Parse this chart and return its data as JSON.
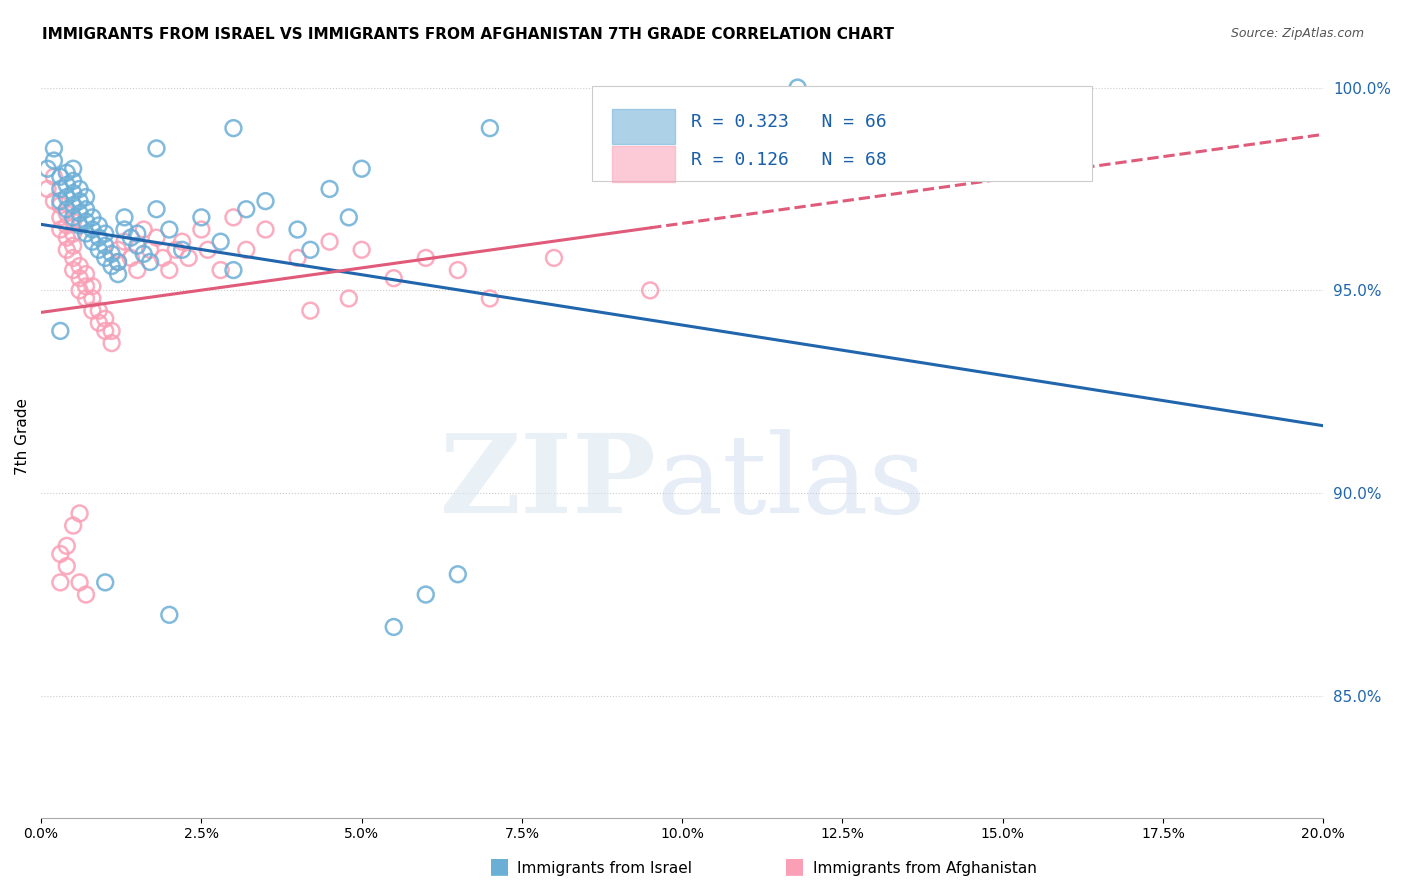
{
  "title": "IMMIGRANTS FROM ISRAEL VS IMMIGRANTS FROM AFGHANISTAN 7TH GRADE CORRELATION CHART",
  "source": "Source: ZipAtlas.com",
  "ylabel": "7th Grade",
  "xmin": 0.0,
  "xmax": 0.2,
  "ymin": 0.82,
  "ymax": 1.008,
  "legend_israel": "R = 0.323   N = 66",
  "legend_afghanistan": "R = 0.126   N = 68",
  "israel_color": "#6baed6",
  "afghanistan_color": "#fa9fb5",
  "israel_line_color": "#2166ac",
  "afghanistan_line_color": "#e05a7a",
  "background_color": "#ffffff",
  "grid_color": "#cccccc",
  "israel_x": [
    0.001,
    0.002,
    0.002,
    0.003,
    0.003,
    0.003,
    0.004,
    0.004,
    0.004,
    0.004,
    0.005,
    0.005,
    0.005,
    0.005,
    0.005,
    0.006,
    0.006,
    0.006,
    0.006,
    0.007,
    0.007,
    0.007,
    0.007,
    0.008,
    0.008,
    0.008,
    0.009,
    0.009,
    0.009,
    0.01,
    0.01,
    0.01,
    0.011,
    0.011,
    0.012,
    0.012,
    0.013,
    0.013,
    0.014,
    0.015,
    0.015,
    0.016,
    0.017,
    0.018,
    0.02,
    0.022,
    0.025,
    0.028,
    0.03,
    0.032,
    0.035,
    0.04,
    0.042,
    0.045,
    0.048,
    0.05,
    0.055,
    0.06,
    0.065,
    0.07,
    0.03,
    0.01,
    0.02,
    0.018,
    0.118,
    0.003
  ],
  "israel_y": [
    0.98,
    0.982,
    0.985,
    0.972,
    0.975,
    0.978,
    0.97,
    0.973,
    0.976,
    0.979,
    0.968,
    0.971,
    0.974,
    0.977,
    0.98,
    0.966,
    0.969,
    0.972,
    0.975,
    0.964,
    0.967,
    0.97,
    0.973,
    0.962,
    0.965,
    0.968,
    0.96,
    0.963,
    0.966,
    0.958,
    0.961,
    0.964,
    0.956,
    0.959,
    0.954,
    0.957,
    0.965,
    0.968,
    0.963,
    0.961,
    0.964,
    0.959,
    0.957,
    0.97,
    0.965,
    0.96,
    0.968,
    0.962,
    0.955,
    0.97,
    0.972,
    0.965,
    0.96,
    0.975,
    0.968,
    0.98,
    0.867,
    0.875,
    0.88,
    0.99,
    0.99,
    0.878,
    0.87,
    0.985,
    1.0,
    0.94
  ],
  "afghanistan_x": [
    0.001,
    0.002,
    0.002,
    0.003,
    0.003,
    0.003,
    0.004,
    0.004,
    0.004,
    0.004,
    0.005,
    0.005,
    0.005,
    0.005,
    0.005,
    0.006,
    0.006,
    0.006,
    0.007,
    0.007,
    0.007,
    0.008,
    0.008,
    0.008,
    0.009,
    0.009,
    0.01,
    0.01,
    0.011,
    0.011,
    0.012,
    0.012,
    0.013,
    0.014,
    0.015,
    0.016,
    0.017,
    0.018,
    0.019,
    0.02,
    0.021,
    0.022,
    0.023,
    0.025,
    0.026,
    0.028,
    0.03,
    0.032,
    0.035,
    0.04,
    0.042,
    0.045,
    0.048,
    0.05,
    0.055,
    0.06,
    0.065,
    0.07,
    0.08,
    0.095,
    0.003,
    0.003,
    0.004,
    0.004,
    0.005,
    0.006,
    0.006,
    0.007
  ],
  "afghanistan_y": [
    0.975,
    0.978,
    0.972,
    0.965,
    0.968,
    0.971,
    0.96,
    0.963,
    0.966,
    0.969,
    0.955,
    0.958,
    0.961,
    0.964,
    0.967,
    0.95,
    0.953,
    0.956,
    0.948,
    0.951,
    0.954,
    0.945,
    0.948,
    0.951,
    0.942,
    0.945,
    0.94,
    0.943,
    0.937,
    0.94,
    0.96,
    0.957,
    0.962,
    0.958,
    0.955,
    0.965,
    0.96,
    0.963,
    0.958,
    0.955,
    0.96,
    0.962,
    0.958,
    0.965,
    0.96,
    0.955,
    0.968,
    0.96,
    0.965,
    0.958,
    0.945,
    0.962,
    0.948,
    0.96,
    0.953,
    0.958,
    0.955,
    0.948,
    0.958,
    0.95,
    0.885,
    0.878,
    0.882,
    0.887,
    0.892,
    0.895,
    0.878,
    0.875
  ]
}
